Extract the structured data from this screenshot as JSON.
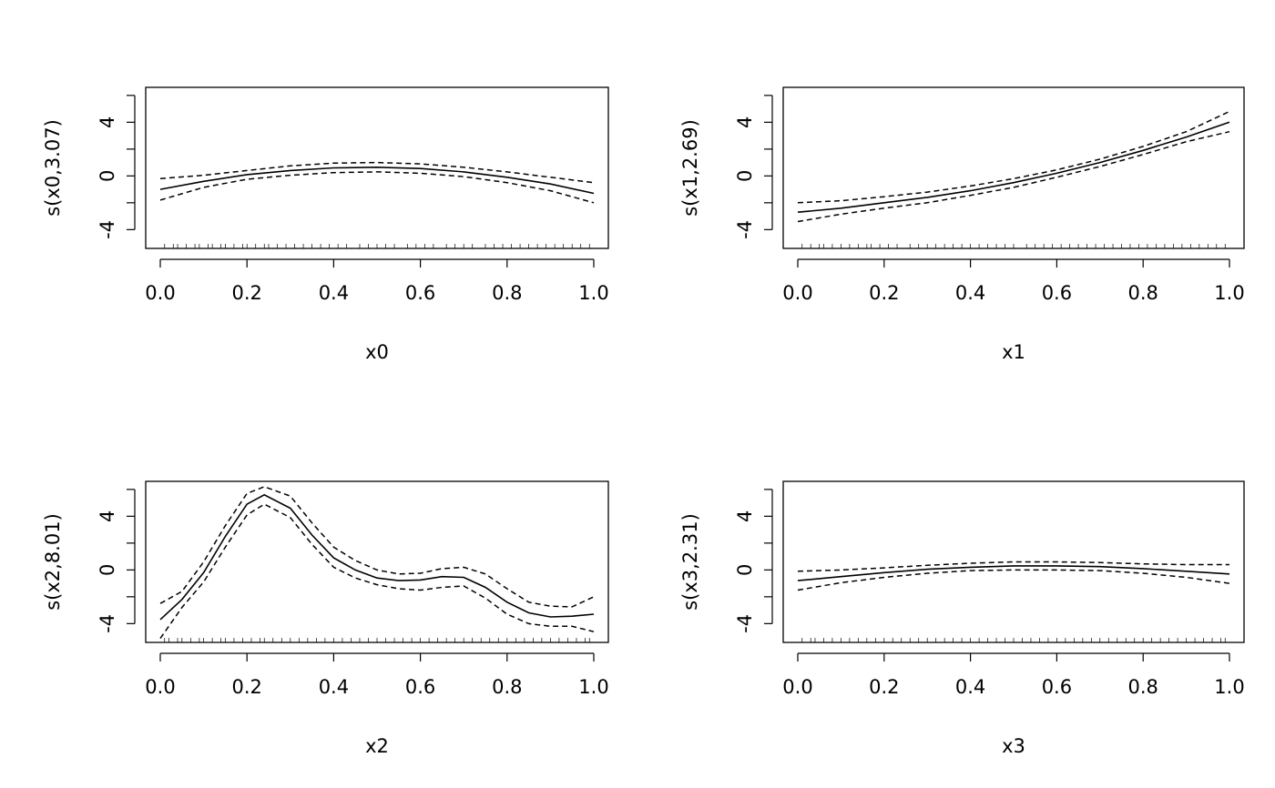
{
  "chart_data": [
    {
      "type": "line",
      "xlabel": "x0",
      "ylabel": "s(x0,3.07)",
      "xlim": [
        0,
        1
      ],
      "ylim": [
        -5.4,
        6.6
      ],
      "xticks": [
        0.0,
        0.2,
        0.4,
        0.6,
        0.8,
        1.0
      ],
      "xtick_labels": [
        "0.0",
        "0.2",
        "0.4",
        "0.6",
        "0.8",
        "1.0"
      ],
      "yticks": [
        -4,
        -2,
        0,
        2,
        4,
        6
      ],
      "ytick_labels": [
        "-4",
        "",
        "0",
        "",
        "4",
        ""
      ],
      "x": [
        0.0,
        0.1,
        0.2,
        0.3,
        0.4,
        0.5,
        0.6,
        0.7,
        0.8,
        0.9,
        1.0
      ],
      "series": [
        {
          "style": "solid",
          "values": [
            -1.0,
            -0.4,
            0.1,
            0.4,
            0.6,
            0.65,
            0.55,
            0.3,
            -0.1,
            -0.6,
            -1.3
          ]
        },
        {
          "style": "dashed",
          "values": [
            -0.2,
            0.05,
            0.4,
            0.75,
            0.95,
            1.0,
            0.9,
            0.65,
            0.3,
            -0.1,
            -0.5
          ]
        },
        {
          "style": "dashed",
          "values": [
            -1.8,
            -0.85,
            -0.25,
            0.05,
            0.25,
            0.3,
            0.2,
            -0.05,
            -0.5,
            -1.1,
            -2.0
          ]
        }
      ],
      "rug": [
        0.01,
        0.03,
        0.04,
        0.06,
        0.08,
        0.09,
        0.11,
        0.12,
        0.14,
        0.15,
        0.17,
        0.19,
        0.2,
        0.22,
        0.24,
        0.25,
        0.27,
        0.29,
        0.31,
        0.33,
        0.35,
        0.37,
        0.39,
        0.41,
        0.43,
        0.46,
        0.48,
        0.5,
        0.52,
        0.54,
        0.57,
        0.59,
        0.61,
        0.63,
        0.66,
        0.68,
        0.7,
        0.72,
        0.75,
        0.77,
        0.79,
        0.81,
        0.83,
        0.85,
        0.87,
        0.89,
        0.91,
        0.93,
        0.95,
        0.97,
        0.99
      ]
    },
    {
      "type": "line",
      "xlabel": "x1",
      "ylabel": "s(x1,2.69)",
      "xlim": [
        0,
        1
      ],
      "ylim": [
        -5.4,
        6.6
      ],
      "xticks": [
        0.0,
        0.2,
        0.4,
        0.6,
        0.8,
        1.0
      ],
      "xtick_labels": [
        "0.0",
        "0.2",
        "0.4",
        "0.6",
        "0.8",
        "1.0"
      ],
      "yticks": [
        -4,
        -2,
        0,
        2,
        4,
        6
      ],
      "ytick_labels": [
        "-4",
        "",
        "0",
        "",
        "4",
        ""
      ],
      "x": [
        0.0,
        0.1,
        0.2,
        0.3,
        0.4,
        0.5,
        0.6,
        0.7,
        0.8,
        0.9,
        1.0
      ],
      "series": [
        {
          "style": "solid",
          "values": [
            -2.7,
            -2.4,
            -2.0,
            -1.6,
            -1.1,
            -0.5,
            0.2,
            1.0,
            1.9,
            2.9,
            4.0
          ]
        },
        {
          "style": "dashed",
          "values": [
            -2.0,
            -1.85,
            -1.55,
            -1.2,
            -0.75,
            -0.2,
            0.45,
            1.25,
            2.2,
            3.3,
            4.8
          ]
        },
        {
          "style": "dashed",
          "values": [
            -3.4,
            -2.85,
            -2.4,
            -2.0,
            -1.45,
            -0.85,
            -0.1,
            0.7,
            1.6,
            2.55,
            3.3
          ]
        }
      ],
      "rug": [
        0.01,
        0.03,
        0.05,
        0.06,
        0.08,
        0.1,
        0.12,
        0.14,
        0.16,
        0.17,
        0.19,
        0.21,
        0.23,
        0.26,
        0.28,
        0.3,
        0.32,
        0.34,
        0.36,
        0.38,
        0.4,
        0.42,
        0.44,
        0.46,
        0.48,
        0.5,
        0.53,
        0.55,
        0.57,
        0.59,
        0.61,
        0.63,
        0.65,
        0.67,
        0.69,
        0.71,
        0.73,
        0.75,
        0.77,
        0.79,
        0.81,
        0.83,
        0.85,
        0.87,
        0.89,
        0.91,
        0.93,
        0.95,
        0.97,
        0.99
      ]
    },
    {
      "type": "line",
      "xlabel": "x2",
      "ylabel": "s(x2,8.01)",
      "xlim": [
        0,
        1
      ],
      "ylim": [
        -5.4,
        6.6
      ],
      "xticks": [
        0.0,
        0.2,
        0.4,
        0.6,
        0.8,
        1.0
      ],
      "xtick_labels": [
        "0.0",
        "0.2",
        "0.4",
        "0.6",
        "0.8",
        "1.0"
      ],
      "yticks": [
        -4,
        -2,
        0,
        2,
        4,
        6
      ],
      "ytick_labels": [
        "-4",
        "",
        "0",
        "",
        "4",
        ""
      ],
      "x": [
        0.0,
        0.05,
        0.1,
        0.15,
        0.2,
        0.24,
        0.3,
        0.35,
        0.4,
        0.45,
        0.5,
        0.55,
        0.6,
        0.65,
        0.7,
        0.75,
        0.8,
        0.85,
        0.9,
        0.95,
        1.0
      ],
      "series": [
        {
          "style": "solid",
          "values": [
            -3.7,
            -2.2,
            -0.2,
            2.5,
            4.9,
            5.6,
            4.6,
            2.6,
            0.9,
            0.0,
            -0.6,
            -0.8,
            -0.75,
            -0.5,
            -0.55,
            -1.3,
            -2.4,
            -3.2,
            -3.5,
            -3.45,
            -3.3
          ]
        },
        {
          "style": "dashed",
          "values": [
            -2.5,
            -1.6,
            0.6,
            3.3,
            5.7,
            6.2,
            5.5,
            3.5,
            1.7,
            0.7,
            0.0,
            -0.3,
            -0.25,
            0.1,
            0.2,
            -0.3,
            -1.4,
            -2.4,
            -2.7,
            -2.75,
            -2.0
          ]
        },
        {
          "style": "dashed",
          "values": [
            -5.1,
            -2.8,
            -0.9,
            1.7,
            4.1,
            4.9,
            3.9,
            1.9,
            0.2,
            -0.6,
            -1.1,
            -1.4,
            -1.5,
            -1.3,
            -1.2,
            -2.1,
            -3.3,
            -4.0,
            -4.2,
            -4.2,
            -4.6
          ]
        }
      ],
      "rug": [
        0.01,
        0.02,
        0.04,
        0.05,
        0.07,
        0.09,
        0.1,
        0.12,
        0.14,
        0.15,
        0.17,
        0.19,
        0.21,
        0.23,
        0.24,
        0.26,
        0.28,
        0.3,
        0.32,
        0.34,
        0.36,
        0.38,
        0.4,
        0.42,
        0.44,
        0.46,
        0.48,
        0.5,
        0.52,
        0.54,
        0.56,
        0.58,
        0.6,
        0.62,
        0.64,
        0.66,
        0.68,
        0.7,
        0.72,
        0.74,
        0.76,
        0.78,
        0.8,
        0.82,
        0.84,
        0.86,
        0.88,
        0.9,
        0.92,
        0.94,
        0.96,
        0.98,
        0.99
      ]
    },
    {
      "type": "line",
      "xlabel": "x3",
      "ylabel": "s(x3,2.31)",
      "xlim": [
        0,
        1
      ],
      "ylim": [
        -5.4,
        6.6
      ],
      "xticks": [
        0.0,
        0.2,
        0.4,
        0.6,
        0.8,
        1.0
      ],
      "xtick_labels": [
        "0.0",
        "0.2",
        "0.4",
        "0.6",
        "0.8",
        "1.0"
      ],
      "yticks": [
        -4,
        -2,
        0,
        2,
        4,
        6
      ],
      "ytick_labels": [
        "-4",
        "",
        "0",
        "",
        "4",
        ""
      ],
      "x": [
        0.0,
        0.1,
        0.2,
        0.3,
        0.4,
        0.5,
        0.6,
        0.7,
        0.8,
        0.9,
        1.0
      ],
      "series": [
        {
          "style": "solid",
          "values": [
            -0.8,
            -0.5,
            -0.2,
            0.05,
            0.2,
            0.3,
            0.3,
            0.25,
            0.1,
            -0.1,
            -0.3
          ]
        },
        {
          "style": "dashed",
          "values": [
            -0.1,
            0.0,
            0.15,
            0.35,
            0.5,
            0.6,
            0.6,
            0.55,
            0.45,
            0.4,
            0.4
          ]
        },
        {
          "style": "dashed",
          "values": [
            -1.5,
            -0.95,
            -0.55,
            -0.25,
            -0.05,
            0.0,
            0.0,
            -0.05,
            -0.25,
            -0.55,
            -1.0
          ]
        }
      ],
      "rug": [
        0.01,
        0.03,
        0.04,
        0.06,
        0.08,
        0.1,
        0.12,
        0.14,
        0.16,
        0.18,
        0.2,
        0.22,
        0.24,
        0.26,
        0.28,
        0.3,
        0.32,
        0.34,
        0.36,
        0.38,
        0.4,
        0.42,
        0.44,
        0.46,
        0.48,
        0.5,
        0.52,
        0.54,
        0.56,
        0.58,
        0.6,
        0.62,
        0.64,
        0.66,
        0.68,
        0.7,
        0.72,
        0.74,
        0.76,
        0.78,
        0.8,
        0.82,
        0.84,
        0.86,
        0.88,
        0.9,
        0.92,
        0.94,
        0.96,
        0.98,
        0.99
      ]
    }
  ]
}
